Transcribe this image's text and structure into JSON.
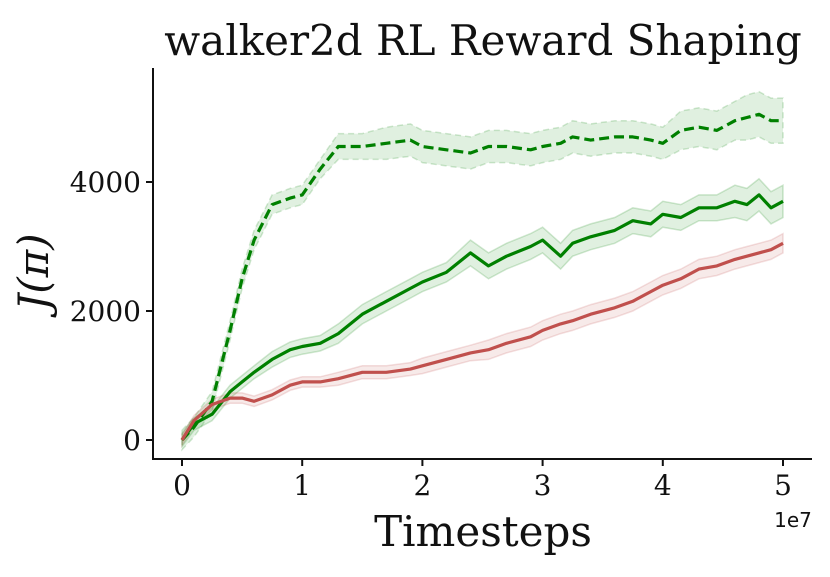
{
  "chart_data": {
    "type": "line",
    "title": "walker2d RL Reward Shaping",
    "xlabel": "Timesteps",
    "ylabel": "J(π)",
    "x_offset_label": "1e7",
    "x_ticks": [
      0,
      1,
      2,
      3,
      4,
      5
    ],
    "y_ticks": [
      0,
      2000,
      4000
    ],
    "xlim": [
      -0.25,
      5.3
    ],
    "ylim": [
      -300,
      5800
    ],
    "grid": false,
    "legend": "none",
    "x": [
      0,
      0.1,
      0.25,
      0.4,
      0.5,
      0.6,
      0.75,
      0.9,
      1.0,
      1.15,
      1.3,
      1.5,
      1.7,
      1.9,
      2.0,
      2.2,
      2.4,
      2.55,
      2.7,
      2.9,
      3.0,
      3.15,
      3.25,
      3.4,
      3.6,
      3.75,
      3.9,
      4.0,
      4.15,
      4.3,
      4.45,
      4.6,
      4.7,
      4.8,
      4.9,
      5.0
    ],
    "series": [
      {
        "color": "#008000",
        "style": "dashed",
        "values": [
          0,
          200,
          600,
          1700,
          2500,
          3100,
          3650,
          3750,
          3800,
          4200,
          4550,
          4550,
          4600,
          4650,
          4550,
          4500,
          4450,
          4550,
          4550,
          4500,
          4550,
          4600,
          4700,
          4650,
          4700,
          4700,
          4650,
          4600,
          4800,
          4850,
          4800,
          4950,
          5000,
          5050,
          4950,
          4950
        ],
        "band": [
          150,
          150,
          150,
          150,
          150,
          150,
          150,
          150,
          150,
          150,
          200,
          200,
          250,
          250,
          250,
          250,
          250,
          250,
          250,
          250,
          250,
          250,
          250,
          250,
          250,
          250,
          250,
          250,
          300,
          300,
          300,
          300,
          350,
          350,
          350,
          350
        ]
      },
      {
        "color": "#008000",
        "style": "solid",
        "values": [
          0,
          250,
          400,
          750,
          900,
          1050,
          1250,
          1400,
          1450,
          1500,
          1650,
          1950,
          2150,
          2350,
          2450,
          2600,
          2900,
          2700,
          2850,
          3000,
          3100,
          2850,
          3050,
          3150,
          3250,
          3400,
          3350,
          3500,
          3450,
          3600,
          3600,
          3700,
          3650,
          3800,
          3600,
          3700
        ],
        "band": [
          100,
          100,
          100,
          100,
          100,
          100,
          120,
          120,
          120,
          120,
          150,
          150,
          150,
          150,
          150,
          150,
          200,
          200,
          200,
          200,
          200,
          200,
          200,
          200,
          200,
          200,
          200,
          200,
          200,
          200,
          200,
          250,
          250,
          250,
          250,
          250
        ]
      },
      {
        "color": "#c0504d",
        "style": "solid",
        "values": [
          0,
          300,
          550,
          650,
          650,
          600,
          700,
          850,
          900,
          900,
          950,
          1050,
          1050,
          1100,
          1150,
          1250,
          1350,
          1400,
          1500,
          1600,
          1700,
          1800,
          1850,
          1950,
          2050,
          2150,
          2300,
          2400,
          2500,
          2650,
          2700,
          2800,
          2850,
          2900,
          2950,
          3050
        ],
        "band": [
          80,
          80,
          80,
          80,
          80,
          80,
          80,
          80,
          80,
          80,
          100,
          100,
          100,
          100,
          120,
          120,
          120,
          150,
          150,
          150,
          150,
          150,
          150,
          150,
          150,
          150,
          150,
          150,
          150,
          150,
          150,
          150,
          150,
          150,
          150,
          150
        ]
      }
    ]
  }
}
